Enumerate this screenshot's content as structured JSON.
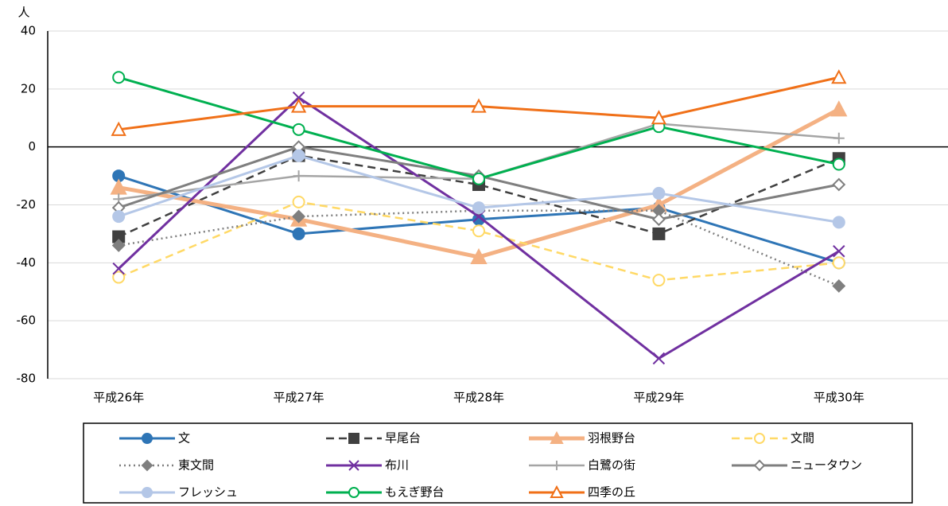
{
  "chart_data": {
    "type": "line",
    "y_axis_label": "人",
    "categories": [
      "平成26年",
      "平成27年",
      "平成28年",
      "平成29年",
      "平成30年"
    ],
    "ylim": [
      -80,
      40
    ],
    "yticks": [
      40,
      20,
      0,
      -20,
      -40,
      -60,
      -80
    ],
    "grid": true,
    "legend": "bottom",
    "series": [
      {
        "name": "文",
        "color": "#2e75b6",
        "marker": "circle",
        "filled": true,
        "dash": "solid",
        "width": 3,
        "values": [
          -10,
          -30,
          -25,
          -21,
          -40
        ]
      },
      {
        "name": "早尾台",
        "color": "#404040",
        "marker": "square",
        "filled": true,
        "dash": "dash",
        "width": 2.5,
        "values": [
          -31,
          -3,
          -13,
          -30,
          -4
        ]
      },
      {
        "name": "羽根野台",
        "color": "#f4b183",
        "marker": "triangle",
        "filled": true,
        "dash": "solid",
        "width": 5,
        "values": [
          -14,
          -25,
          -38,
          -20,
          13
        ]
      },
      {
        "name": "文間",
        "color": "#ffd966",
        "marker": "circle",
        "filled": false,
        "dash": "dash",
        "width": 2.5,
        "values": [
          -45,
          -19,
          -29,
          -46,
          -40
        ]
      },
      {
        "name": "東文間",
        "color": "#7f7f7f",
        "marker": "diamond",
        "filled": true,
        "dash": "dot",
        "width": 2.5,
        "values": [
          -34,
          -24,
          -22,
          -22,
          -48
        ]
      },
      {
        "name": "布川",
        "color": "#7030a0",
        "marker": "x",
        "filled": false,
        "dash": "solid",
        "width": 3,
        "values": [
          -42,
          17,
          -24,
          -73,
          -36
        ]
      },
      {
        "name": "白鷺の街",
        "color": "#a5a5a5",
        "marker": "plus",
        "filled": false,
        "dash": "solid",
        "width": 2.5,
        "values": [
          -18,
          -10,
          -11,
          8,
          3
        ]
      },
      {
        "name": "ニュータウン",
        "color": "#7f7f7f",
        "marker": "diamond",
        "filled": false,
        "dash": "solid",
        "width": 3,
        "values": [
          -21,
          0,
          -10,
          -25,
          -13
        ]
      },
      {
        "name": "フレッシュ",
        "color": "#b4c7e7",
        "marker": "circle",
        "filled": true,
        "dash": "solid",
        "width": 3,
        "values": [
          -24,
          -3,
          -21,
          -16,
          -26
        ]
      },
      {
        "name": "もえぎ野台",
        "color": "#00b050",
        "marker": "circle",
        "filled": false,
        "dash": "solid",
        "width": 3,
        "values": [
          24,
          6,
          -11,
          7,
          -6
        ]
      },
      {
        "name": "四季の丘",
        "color": "#f07018",
        "marker": "triangle",
        "filled": false,
        "dash": "solid",
        "width": 3,
        "values": [
          6,
          14,
          14,
          10,
          24
        ]
      }
    ]
  }
}
